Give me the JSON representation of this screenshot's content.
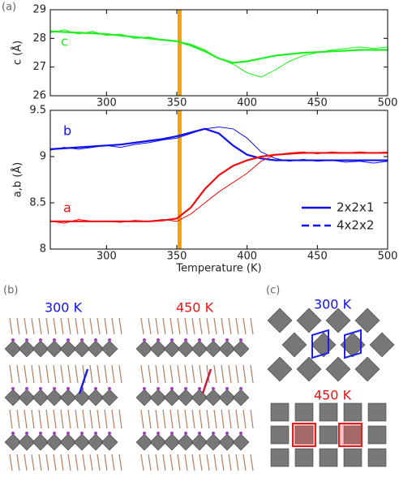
{
  "figure_label": "(a)",
  "chart_data": [
    {
      "type": "line",
      "ylabel": "c (Å)",
      "xlim": [
        260,
        500
      ],
      "xticks": [
        300,
        350,
        400,
        450,
        500
      ],
      "ylim": [
        26,
        29
      ],
      "yticks": [
        26,
        27,
        28,
        29
      ],
      "marker_x": 352,
      "marker_color": "#f5a300",
      "x": [
        260,
        270,
        280,
        290,
        300,
        310,
        320,
        330,
        340,
        350,
        360,
        370,
        380,
        390,
        400,
        410,
        420,
        430,
        440,
        450,
        460,
        470,
        480,
        490,
        500
      ],
      "series": [
        {
          "name": "c",
          "color": "#22ee22",
          "values": [
            28.2,
            28.3,
            28.15,
            28.25,
            28.1,
            28.15,
            28.0,
            28.05,
            27.95,
            27.9,
            27.8,
            27.6,
            27.3,
            27.1,
            26.8,
            26.65,
            26.9,
            27.2,
            27.4,
            27.5,
            27.6,
            27.65,
            27.7,
            27.65,
            27.7
          ],
          "fit": [
            28.25,
            28.22,
            28.2,
            28.18,
            28.15,
            28.1,
            28.05,
            28.0,
            27.95,
            27.9,
            27.75,
            27.55,
            27.3,
            27.15,
            27.2,
            27.3,
            27.4,
            27.45,
            27.5,
            27.52,
            27.55,
            27.57,
            27.6,
            27.6,
            27.6
          ]
        }
      ]
    },
    {
      "type": "line",
      "xlabel": "Temperature (K)",
      "ylabel": "a,b (Å)",
      "xlim": [
        260,
        500
      ],
      "xticks": [
        300,
        350,
        400,
        450,
        500
      ],
      "ylim": [
        8,
        9.5
      ],
      "yticks": [
        8,
        8.5,
        9,
        9.5
      ],
      "marker_x": 352,
      "marker_color": "#f5a300",
      "x": [
        260,
        270,
        280,
        290,
        300,
        310,
        320,
        330,
        340,
        350,
        360,
        370,
        380,
        390,
        400,
        410,
        420,
        430,
        440,
        450,
        460,
        470,
        480,
        490,
        500
      ],
      "series": [
        {
          "name": "b",
          "color": "#1010ee",
          "values": [
            9.07,
            9.1,
            9.08,
            9.1,
            9.12,
            9.1,
            9.13,
            9.15,
            9.18,
            9.2,
            9.25,
            9.3,
            9.32,
            9.3,
            9.2,
            9.05,
            8.98,
            8.95,
            8.97,
            8.95,
            8.96,
            8.94,
            8.95,
            8.93,
            8.95
          ],
          "fit": [
            9.08,
            9.09,
            9.1,
            9.11,
            9.12,
            9.13,
            9.15,
            9.17,
            9.19,
            9.22,
            9.26,
            9.3,
            9.25,
            9.12,
            9.02,
            8.98,
            8.96,
            8.96,
            8.96,
            8.96,
            8.96,
            8.96,
            8.96,
            8.96,
            8.96
          ]
        },
        {
          "name": "a",
          "color": "#ee1010",
          "values": [
            8.3,
            8.28,
            8.32,
            8.3,
            8.3,
            8.29,
            8.31,
            8.3,
            8.32,
            8.3,
            8.38,
            8.5,
            8.62,
            8.72,
            8.82,
            8.95,
            9.02,
            9.04,
            9.05,
            9.03,
            9.05,
            9.04,
            9.05,
            9.04,
            9.05
          ],
          "fit": [
            8.3,
            8.3,
            8.3,
            8.3,
            8.3,
            8.3,
            8.3,
            8.3,
            8.31,
            8.33,
            8.45,
            8.65,
            8.8,
            8.9,
            8.96,
            9.0,
            9.02,
            9.03,
            9.04,
            9.04,
            9.04,
            9.04,
            9.04,
            9.04,
            9.04
          ]
        }
      ],
      "legend": [
        {
          "label": "2x2x1",
          "dash": false
        },
        {
          "label": "4x2x2",
          "dash": true
        }
      ],
      "legend_color": "#1010ee"
    }
  ],
  "panel_b": {
    "label": "(b)",
    "structures": [
      {
        "label": "300 K",
        "color": "#1010ee"
      },
      {
        "label": "450 K",
        "color": "#ee1010"
      }
    ]
  },
  "panel_c": {
    "label": "(c)",
    "structures": [
      {
        "label": "300 K",
        "color": "#1010ee"
      },
      {
        "label": "450 K",
        "color": "#ee1010"
      }
    ]
  }
}
